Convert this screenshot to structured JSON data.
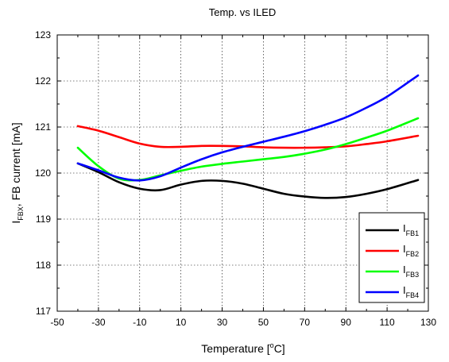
{
  "chart_data": {
    "type": "line",
    "title": "Temp. vs ILED",
    "xlabel": {
      "main": "Temperature [",
      "sup": "o",
      "tail": "C]"
    },
    "ylabel": {
      "main": "I",
      "sub": "FBX",
      "tail": ", FB current [mA]"
    },
    "xlim": [
      -50,
      130
    ],
    "ylim": [
      117,
      123
    ],
    "x_ticks": [
      "-50",
      "-30",
      "-10",
      "10",
      "30",
      "50",
      "70",
      "90",
      "110",
      "130"
    ],
    "y_ticks": [
      "117",
      "118",
      "119",
      "120",
      "121",
      "122",
      "123"
    ],
    "grid": true,
    "legend_position": "bottom-right",
    "series": [
      {
        "name": {
          "main": "I",
          "sub": "FB1"
        },
        "color": "#000000",
        "x": [
          -40,
          -30,
          -20,
          -10,
          0,
          10,
          20,
          30,
          40,
          50,
          60,
          70,
          80,
          90,
          100,
          110,
          125
        ],
        "y": [
          120.21,
          120.02,
          119.8,
          119.66,
          119.63,
          119.75,
          119.83,
          119.83,
          119.77,
          119.66,
          119.55,
          119.49,
          119.46,
          119.48,
          119.55,
          119.65,
          119.85
        ]
      },
      {
        "name": {
          "main": "I",
          "sub": "FB2"
        },
        "color": "#ff0000",
        "x": [
          -40,
          -30,
          -20,
          -10,
          0,
          10,
          20,
          30,
          40,
          50,
          60,
          70,
          80,
          90,
          100,
          110,
          125
        ],
        "y": [
          121.02,
          120.92,
          120.78,
          120.64,
          120.57,
          120.57,
          120.59,
          120.59,
          120.58,
          120.56,
          120.55,
          120.55,
          120.56,
          120.58,
          120.63,
          120.69,
          120.81
        ]
      },
      {
        "name": {
          "main": "I",
          "sub": "FB3"
        },
        "color": "#00ff00",
        "x": [
          -40,
          -30,
          -20,
          -10,
          0,
          10,
          20,
          30,
          40,
          50,
          60,
          70,
          80,
          90,
          100,
          110,
          125
        ],
        "y": [
          120.55,
          120.15,
          119.88,
          119.85,
          119.95,
          120.05,
          120.14,
          120.2,
          120.25,
          120.3,
          120.35,
          120.42,
          120.51,
          120.63,
          120.77,
          120.92,
          121.19
        ]
      },
      {
        "name": {
          "main": "I",
          "sub": "FB4"
        },
        "color": "#0000ff",
        "x": [
          -40,
          -30,
          -20,
          -10,
          0,
          10,
          20,
          30,
          40,
          50,
          60,
          70,
          80,
          90,
          100,
          110,
          125
        ],
        "y": [
          120.21,
          120.06,
          119.9,
          119.84,
          119.93,
          120.12,
          120.3,
          120.45,
          120.57,
          120.68,
          120.79,
          120.91,
          121.05,
          121.21,
          121.42,
          121.66,
          122.12
        ]
      }
    ]
  }
}
